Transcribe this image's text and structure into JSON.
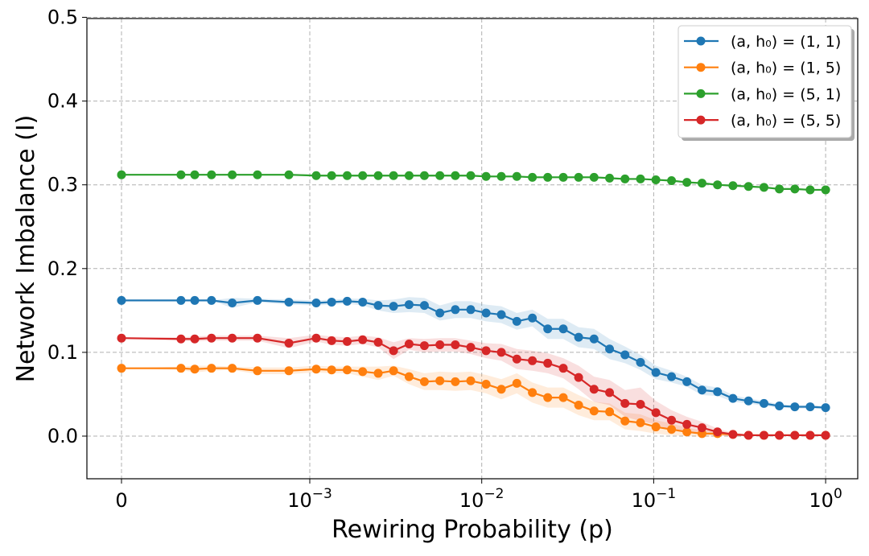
{
  "chart_data": {
    "type": "line",
    "title": "",
    "xlabel": "Rewiring Probability (p)",
    "ylabel": "Network Imbalance (I)",
    "xscale": "symlog",
    "linthresh": 0.001,
    "xlim": [
      -0.0002,
      2.0
    ],
    "ylim": [
      -0.05,
      0.5
    ],
    "grid": true,
    "legend_position": "top-right",
    "x_ticks": [
      {
        "value": 0,
        "base": "0",
        "exp": ""
      },
      {
        "value": 0.001,
        "base": "10",
        "exp": "−3"
      },
      {
        "value": 0.01,
        "base": "10",
        "exp": "−2"
      },
      {
        "value": 0.1,
        "base": "10",
        "exp": "−1"
      },
      {
        "value": 1,
        "base": "10",
        "exp": "0"
      }
    ],
    "y_ticks": [
      "0.0",
      "0.1",
      "0.2",
      "0.3",
      "0.4",
      "0.5"
    ],
    "x": [
      0,
      0.000316,
      0.000389,
      0.000478,
      0.000588,
      0.000722,
      0.000889,
      0.00109,
      0.00134,
      0.00165,
      0.00203,
      0.0025,
      0.00307,
      0.00378,
      0.00464,
      0.00571,
      0.00702,
      0.00863,
      0.0106,
      0.013,
      0.016,
      0.0197,
      0.0242,
      0.0298,
      0.0366,
      0.045,
      0.0554,
      0.0681,
      0.0838,
      0.103,
      0.127,
      0.156,
      0.191,
      0.235,
      0.289,
      0.356,
      0.438,
      0.538,
      0.662,
      0.813,
      1.0
    ],
    "series": [
      {
        "name": "(a, h₀) = (1, 1)",
        "color": "#1f77b4",
        "values": [
          0.162,
          0.162,
          0.162,
          0.162,
          0.159,
          0.162,
          0.16,
          0.159,
          0.16,
          0.161,
          0.16,
          0.156,
          0.155,
          0.157,
          0.156,
          0.147,
          0.151,
          0.151,
          0.147,
          0.145,
          0.137,
          0.141,
          0.128,
          0.128,
          0.118,
          0.116,
          0.104,
          0.097,
          0.088,
          0.076,
          0.071,
          0.065,
          0.055,
          0.053,
          0.045,
          0.042,
          0.039,
          0.036,
          0.035,
          0.035,
          0.034
        ],
        "band": [
          0,
          0,
          0,
          0,
          0.006,
          0.002,
          0.003,
          0.003,
          0.003,
          0.003,
          0.004,
          0.006,
          0.008,
          0.009,
          0.009,
          0.009,
          0.01,
          0.01,
          0.01,
          0.01,
          0.01,
          0.01,
          0.012,
          0.012,
          0.012,
          0.012,
          0.012,
          0.01,
          0.009,
          0.008,
          0.007,
          0.006,
          0.006,
          0.005,
          0.004,
          0.003,
          0.003,
          0.002,
          0.002,
          0.002,
          0.002
        ]
      },
      {
        "name": "(a, h₀) = (1, 5)",
        "color": "#ff7f0e",
        "values": [
          0.081,
          0.081,
          0.08,
          0.081,
          0.081,
          0.078,
          0.078,
          0.08,
          0.079,
          0.079,
          0.077,
          0.075,
          0.078,
          0.071,
          0.065,
          0.066,
          0.065,
          0.066,
          0.062,
          0.056,
          0.063,
          0.052,
          0.046,
          0.046,
          0.037,
          0.03,
          0.029,
          0.018,
          0.016,
          0.011,
          0.008,
          0.005,
          0.003,
          0.003,
          0.002,
          0.001,
          0.001,
          0.001,
          0.001,
          0.001,
          0.001
        ],
        "band": [
          0,
          0.002,
          0.004,
          0.003,
          0.002,
          0.004,
          0.004,
          0.004,
          0.004,
          0.004,
          0.006,
          0.008,
          0.006,
          0.009,
          0.01,
          0.011,
          0.011,
          0.011,
          0.011,
          0.012,
          0.012,
          0.012,
          0.012,
          0.012,
          0.012,
          0.011,
          0.01,
          0.01,
          0.01,
          0.008,
          0.007,
          0.005,
          0.004,
          0.003,
          0.002,
          0.001,
          0.001,
          0.001,
          0.001,
          0.001,
          0.001
        ]
      },
      {
        "name": "(a, h₀) = (5, 1)",
        "color": "#2ca02c",
        "values": [
          0.312,
          0.312,
          0.312,
          0.312,
          0.312,
          0.312,
          0.312,
          0.311,
          0.311,
          0.311,
          0.311,
          0.311,
          0.311,
          0.311,
          0.311,
          0.311,
          0.311,
          0.311,
          0.31,
          0.31,
          0.31,
          0.309,
          0.309,
          0.309,
          0.309,
          0.309,
          0.308,
          0.307,
          0.307,
          0.306,
          0.305,
          0.303,
          0.302,
          0.3,
          0.299,
          0.298,
          0.297,
          0.295,
          0.295,
          0.294,
          0.294
        ],
        "band": [
          0,
          0.001,
          0.001,
          0.001,
          0.001,
          0.001,
          0.001,
          0.001,
          0.001,
          0.001,
          0.001,
          0.001,
          0.001,
          0.001,
          0.001,
          0.001,
          0.001,
          0.001,
          0.001,
          0.001,
          0.001,
          0.001,
          0.001,
          0.001,
          0.001,
          0.001,
          0.001,
          0.001,
          0.001,
          0.001,
          0.001,
          0.001,
          0.001,
          0.001,
          0.001,
          0.001,
          0.001,
          0.001,
          0.001,
          0.001,
          0.001
        ]
      },
      {
        "name": "(a, h₀) = (5, 5)",
        "color": "#d62728",
        "values": [
          0.117,
          0.116,
          0.116,
          0.117,
          0.117,
          0.117,
          0.111,
          0.117,
          0.114,
          0.113,
          0.115,
          0.112,
          0.102,
          0.11,
          0.108,
          0.109,
          0.109,
          0.106,
          0.102,
          0.1,
          0.092,
          0.09,
          0.087,
          0.081,
          0.07,
          0.056,
          0.052,
          0.039,
          0.038,
          0.028,
          0.019,
          0.014,
          0.01,
          0.005,
          0.002,
          0.001,
          0.001,
          0.001,
          0.001,
          0.001,
          0.001
        ],
        "band": [
          0,
          0.002,
          0.003,
          0.003,
          0.003,
          0.003,
          0.006,
          0.004,
          0.005,
          0.005,
          0.005,
          0.006,
          0.01,
          0.007,
          0.008,
          0.008,
          0.008,
          0.008,
          0.009,
          0.01,
          0.012,
          0.012,
          0.012,
          0.012,
          0.014,
          0.015,
          0.015,
          0.016,
          0.02,
          0.014,
          0.012,
          0.009,
          0.007,
          0.004,
          0.002,
          0.001,
          0.001,
          0.001,
          0.001,
          0.001,
          0.001
        ]
      }
    ]
  }
}
